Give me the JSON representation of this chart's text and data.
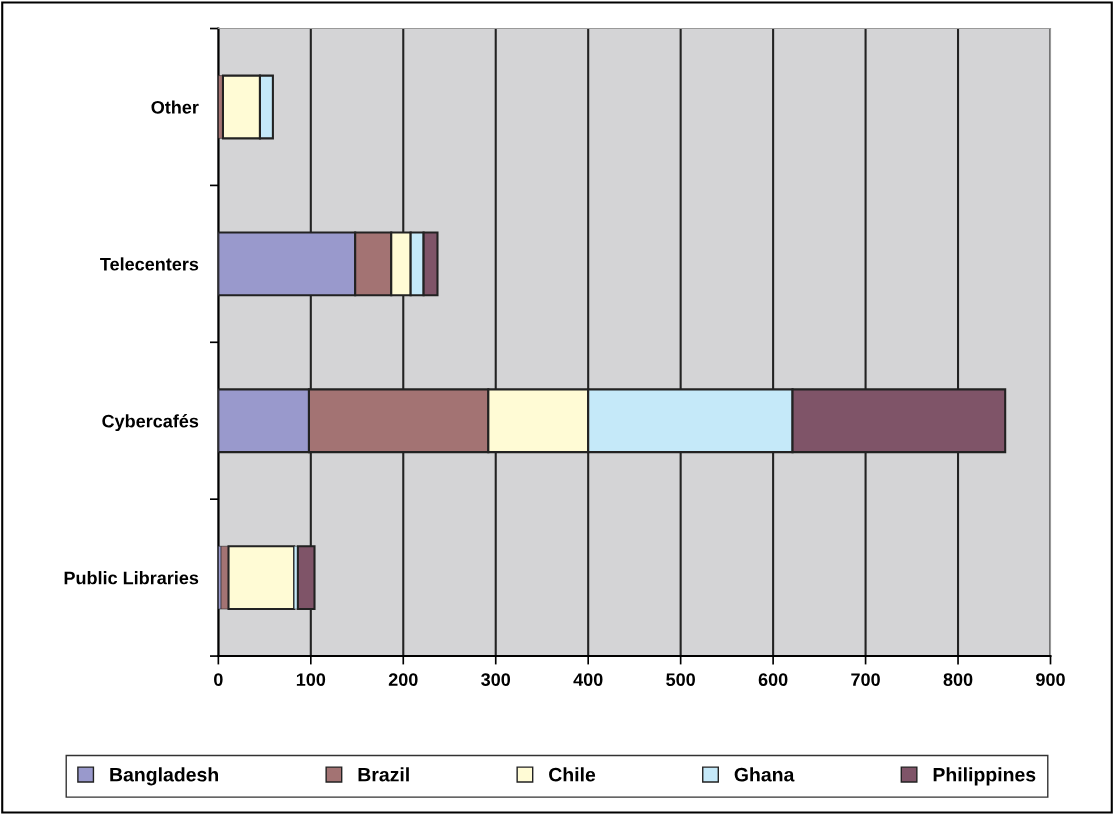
{
  "chart_data": {
    "type": "bar",
    "orientation": "horizontal",
    "stacked": true,
    "categories": [
      "Other",
      "Telecenters",
      "Cybercafés",
      "Public Libraries"
    ],
    "series": [
      {
        "name": "Bangladesh",
        "color": "#9999cc",
        "values": [
          0,
          148,
          98,
          3
        ]
      },
      {
        "name": "Brazil",
        "color": "#a37373",
        "values": [
          5,
          39,
          194,
          8
        ]
      },
      {
        "name": "Chile",
        "color": "#fffbd5",
        "values": [
          40,
          21,
          108,
          71
        ]
      },
      {
        "name": "Ghana",
        "color": "#c5e9f9",
        "values": [
          14,
          14,
          221,
          4
        ]
      },
      {
        "name": "Philippines",
        "color": "#7f5468",
        "values": [
          0,
          15,
          230,
          18
        ]
      }
    ],
    "xlim": [
      0,
      900
    ],
    "xticks": [
      0,
      100,
      200,
      300,
      400,
      500,
      600,
      700,
      800,
      900
    ],
    "grid": "x",
    "legend": "bottom"
  }
}
